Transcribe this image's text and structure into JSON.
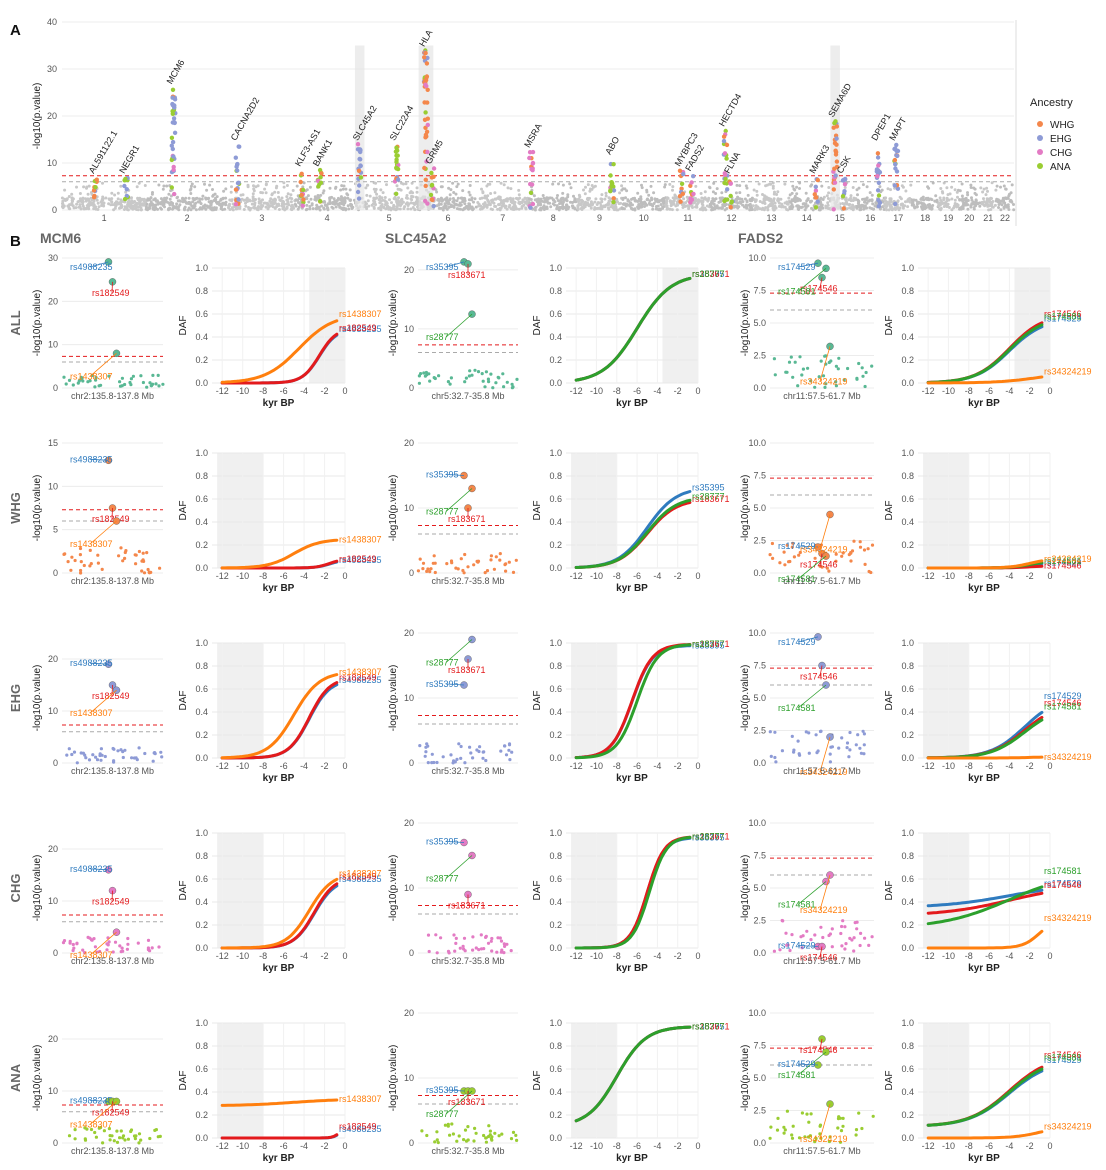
{
  "panel_a_letter": "A",
  "panel_b_letter": "B",
  "chart_data": [
    {
      "type": "scatter",
      "name": "manhattan",
      "ylabel": "-log10(p.value)",
      "ylim": [
        0,
        40
      ],
      "yticks": [
        0,
        10,
        20,
        30,
        40
      ],
      "chromosomes": [
        {
          "label": "1",
          "start": 0,
          "end": 8.0
        },
        {
          "label": "2",
          "start": 8.0,
          "end": 15.8
        },
        {
          "label": "3",
          "start": 15.8,
          "end": 22.2
        },
        {
          "label": "4",
          "start": 22.2,
          "end": 28.2
        },
        {
          "label": "5",
          "start": 28.2,
          "end": 34.0
        },
        {
          "label": "6",
          "start": 34.0,
          "end": 39.4
        },
        {
          "label": "7",
          "start": 39.4,
          "end": 44.4
        },
        {
          "label": "8",
          "start": 44.4,
          "end": 49.0
        },
        {
          "label": "9",
          "start": 49.0,
          "end": 53.2
        },
        {
          "label": "10",
          "start": 53.2,
          "end": 57.4
        },
        {
          "label": "11",
          "start": 57.4,
          "end": 61.6
        },
        {
          "label": "12",
          "start": 61.6,
          "end": 65.7
        },
        {
          "label": "13",
          "start": 65.7,
          "end": 69.2
        },
        {
          "label": "14",
          "start": 69.2,
          "end": 72.4
        },
        {
          "label": "15",
          "start": 72.4,
          "end": 75.5
        },
        {
          "label": "16",
          "start": 75.5,
          "end": 78.2
        },
        {
          "label": "17",
          "start": 78.2,
          "end": 80.8
        },
        {
          "label": "18",
          "start": 80.8,
          "end": 83.3
        },
        {
          "label": "19",
          "start": 83.3,
          "end": 85.2
        },
        {
          "label": "20",
          "start": 85.2,
          "end": 87.3
        },
        {
          "label": "21",
          "start": 87.3,
          "end": 88.8
        },
        {
          "label": "22",
          "start": 88.8,
          "end": 90.5
        }
      ],
      "thresholds": [
        {
          "y": 7.3,
          "color": "#e41a1c"
        },
        {
          "y": 6.0,
          "color": "#aaaaaa"
        }
      ],
      "peaks": [
        {
          "label": "AL591122.1",
          "x": 3.2,
          "h": 7,
          "ancestry": "WHG"
        },
        {
          "label": "NEGR1",
          "x": 6.1,
          "h": 7,
          "ancestry": "ANA"
        },
        {
          "label": "MCM6",
          "x": 10.6,
          "h": 26,
          "ancestry": "EHG"
        },
        {
          "label": "CACNA2D2",
          "x": 16.7,
          "h": 14,
          "ancestry": "EHG"
        },
        {
          "label": "KLF3-AS1",
          "x": 22.8,
          "h": 8.5,
          "ancestry": "ANA"
        },
        {
          "label": "BANK1",
          "x": 24.5,
          "h": 8.5,
          "ancestry": "ANA"
        },
        {
          "label": "SLC45A2",
          "x": 28.3,
          "h": 14,
          "ancestry": "EHG"
        },
        {
          "label": "SLC22A4",
          "x": 31.8,
          "h": 14,
          "ancestry": "ANA"
        },
        {
          "label": "HLA",
          "x": 34.6,
          "h": 34,
          "ancestry": "WHG"
        },
        {
          "label": "GRM5",
          "x": 35.2,
          "h": 9,
          "ancestry": "ANA"
        },
        {
          "label": "MSRA",
          "x": 44.6,
          "h": 12.5,
          "ancestry": "CHG"
        },
        {
          "label": "ABO",
          "x": 52.3,
          "h": 11,
          "ancestry": "ANA"
        },
        {
          "label": "MYBPC3",
          "x": 58.9,
          "h": 8.5,
          "ancestry": "WHG"
        },
        {
          "label": "FADS2",
          "x": 59.9,
          "h": 7.5,
          "ancestry": "CHG"
        },
        {
          "label": "HECTD4",
          "x": 63.1,
          "h": 17,
          "ancestry": "ANA"
        },
        {
          "label": "FLNA",
          "x": 63.6,
          "h": 7,
          "ancestry": "ANA"
        },
        {
          "label": "MARK3",
          "x": 71.7,
          "h": 7,
          "ancestry": "WHG"
        },
        {
          "label": "SEMA6D",
          "x": 73.5,
          "h": 19,
          "ancestry": "WHG"
        },
        {
          "label": "CSK",
          "x": 74.3,
          "h": 7,
          "ancestry": "EHG"
        },
        {
          "label": "DPEP1",
          "x": 77.6,
          "h": 14,
          "ancestry": "EHG"
        },
        {
          "label": "MAPT",
          "x": 79.3,
          "h": 14,
          "ancestry": "EHG"
        }
      ]
    }
  ],
  "legend": {
    "title": "Ancestry",
    "items": [
      {
        "label": "WHG",
        "color": "#f4874b"
      },
      {
        "label": "EHG",
        "color": "#8e9bd6"
      },
      {
        "label": "CHG",
        "color": "#e37bc4"
      },
      {
        "label": "ANA",
        "color": "#9acd32"
      }
    ]
  },
  "panel_b": {
    "columns": [
      {
        "title": "MCM6",
        "locus_label": "chr2:135.8-137.8 Mb",
        "snps": [
          {
            "name": "rs4988235",
            "color": "#2f7bbf"
          },
          {
            "name": "rs182549",
            "color": "#e31a1c"
          },
          {
            "name": "rs1438307",
            "color": "#ff7f0e"
          }
        ]
      },
      {
        "title": "SLC45A2",
        "locus_label": "chr5:32.7-35.8 Mb",
        "snps": [
          {
            "name": "rs35395",
            "color": "#2f7bbf"
          },
          {
            "name": "rs183671",
            "color": "#e31a1c"
          },
          {
            "name": "rs28777",
            "color": "#2ca02c"
          }
        ]
      },
      {
        "title": "FADS2",
        "locus_label": "chr11:57.5-61.7 Mb",
        "snps": [
          {
            "name": "rs174529",
            "color": "#2f7bbf"
          },
          {
            "name": "rs174546",
            "color": "#e31a1c"
          },
          {
            "name": "rs174581",
            "color": "#2ca02c"
          },
          {
            "name": "rs34324219",
            "color": "#ff7f0e"
          }
        ]
      }
    ],
    "rows": [
      {
        "label": "ALL",
        "color": "#59b894"
      },
      {
        "label": "WHG",
        "color": "#f4874b"
      },
      {
        "label": "EHG",
        "color": "#8e9bd6"
      },
      {
        "label": "CHG",
        "color": "#e37bc4"
      },
      {
        "label": "ANA",
        "color": "#9acd32"
      }
    ],
    "ylabel_left": "-log10(p.value)",
    "ylabel_daf": "DAF",
    "xlabel_daf": "kyr BP",
    "daf_xticks": [
      "-12",
      "-10",
      "-8",
      "-6",
      "-4",
      "-2",
      "0"
    ],
    "daf_yticks": [
      "0.0",
      "0.2",
      "0.4",
      "0.6",
      "0.8",
      "1.0"
    ]
  }
}
